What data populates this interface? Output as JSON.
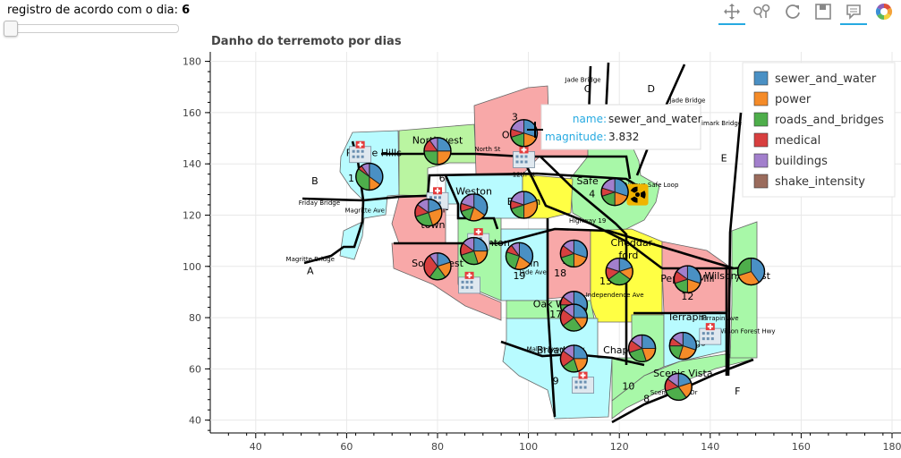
{
  "slider": {
    "label": "registro de acordo com o dia: ",
    "value": "6"
  },
  "toolbar": {
    "tools": [
      {
        "name": "pan-tool-icon",
        "active": true
      },
      {
        "name": "wheel-zoom-icon",
        "active": false
      },
      {
        "name": "reset-icon",
        "active": false
      },
      {
        "name": "save-icon",
        "active": false
      },
      {
        "name": "hover-tool-icon",
        "active": true
      },
      {
        "name": "bokeh-logo-icon",
        "active": false
      }
    ]
  },
  "chart_data": {
    "type": "pie",
    "title": "Danho do terremoto por dias",
    "xlim": [
      30,
      180
    ],
    "ylim": [
      35,
      183
    ],
    "x_ticks": [
      40,
      60,
      80,
      100,
      120,
      140,
      160,
      180
    ],
    "y_ticks": [
      40,
      60,
      80,
      100,
      120,
      140,
      160,
      180
    ],
    "grid": true,
    "legend_position": "top-right",
    "legend": [
      {
        "name": "sewer_and_water",
        "color": "#4a90c4"
      },
      {
        "name": "power",
        "color": "#f58b28"
      },
      {
        "name": "roads_and_bridges",
        "color": "#4eae4b"
      },
      {
        "name": "medical",
        "color": "#d83f3f"
      },
      {
        "name": "buildings",
        "color": "#a27fcc"
      },
      {
        "name": "shake_intensity",
        "color": "#9a6b5c"
      }
    ],
    "tooltip": {
      "name_label": "name:",
      "name_value": "sewer_and_water",
      "magnitude_label": "magnitude:",
      "magnitude_value": "3.832"
    },
    "region_labels": [
      {
        "text": "Palace Hills",
        "x": 66,
        "y": 143
      },
      {
        "text": "1",
        "x": 61,
        "y": 133
      },
      {
        "text": "Northwest",
        "x": 80,
        "y": 148
      },
      {
        "text": "2",
        "x": 79,
        "y": 142
      },
      {
        "text": "3",
        "x": 97,
        "y": 157
      },
      {
        "text": "Old",
        "x": 96,
        "y": 150
      },
      {
        "text": "Weston",
        "x": 88,
        "y": 128
      },
      {
        "text": "6",
        "x": 81,
        "y": 133
      },
      {
        "text": "Down-",
        "x": 79,
        "y": 121
      },
      {
        "text": "town",
        "x": 79,
        "y": 115
      },
      {
        "text": "Easton",
        "x": 99,
        "y": 124
      },
      {
        "text": "14",
        "x": 98,
        "y": 120
      },
      {
        "text": "Safe",
        "x": 113,
        "y": 132
      },
      {
        "text": "4",
        "x": 114,
        "y": 127
      },
      {
        "text": "Southwest",
        "x": 80,
        "y": 100
      },
      {
        "text": "Southton",
        "x": 91,
        "y": 108
      },
      {
        "text": "Parkin",
        "x": 99,
        "y": 100
      },
      {
        "text": "19",
        "x": 98,
        "y": 95
      },
      {
        "text": "Pallo",
        "x": 110,
        "y": 101
      },
      {
        "text": "18",
        "x": 107,
        "y": 96
      },
      {
        "text": "Cheddar-",
        "x": 123,
        "y": 108
      },
      {
        "text": "ford",
        "x": 122,
        "y": 103
      },
      {
        "text": "13",
        "x": 117,
        "y": 93
      },
      {
        "text": "Oak Willow",
        "x": 107,
        "y": 84
      },
      {
        "text": "17",
        "x": 106,
        "y": 80
      },
      {
        "text": "Terrapin",
        "x": 135,
        "y": 79
      },
      {
        "text": "Springs",
        "x": 135,
        "y": 69
      },
      {
        "text": "Broad",
        "x": 105,
        "y": 66
      },
      {
        "text": "9",
        "x": 106,
        "y": 54
      },
      {
        "text": "Chapparal",
        "x": 122,
        "y": 66
      },
      {
        "text": "10",
        "x": 122,
        "y": 52
      },
      {
        "text": "Scenic Vista",
        "x": 134,
        "y": 57
      },
      {
        "text": "8",
        "x": 126,
        "y": 47
      },
      {
        "text": "Pepper Mill",
        "x": 135,
        "y": 94
      },
      {
        "text": "12",
        "x": 135,
        "y": 87
      },
      {
        "text": "Wilson Forest",
        "x": 146,
        "y": 95
      },
      {
        "text": "7",
        "x": 146,
        "y": 94
      }
    ],
    "road_labels": [
      {
        "text": "Jade Bridge",
        "x": 112,
        "y": 172
      },
      {
        "text": "North St",
        "x": 91,
        "y": 145
      },
      {
        "text": "12th St",
        "x": 99,
        "y": 135
      },
      {
        "text": "Friday Bridge",
        "x": 54,
        "y": 124
      },
      {
        "text": "Magritte Ave",
        "x": 64,
        "y": 121
      },
      {
        "text": "Magritte Bridge",
        "x": 52,
        "y": 102
      },
      {
        "text": "Highway 19",
        "x": 113,
        "y": 117
      },
      {
        "text": "Always Safe Loop",
        "x": 127,
        "y": 131
      },
      {
        "text": "Jade Ave",
        "x": 101,
        "y": 97
      },
      {
        "text": "Independence Ave",
        "x": 119,
        "y": 88
      },
      {
        "text": "Mallet Expressway",
        "x": 106,
        "y": 67
      },
      {
        "text": "Terrapin Ave",
        "x": 142,
        "y": 79
      },
      {
        "text": "Wilson Forest Hwy",
        "x": 148,
        "y": 74
      },
      {
        "text": "Scenic Vista Dr",
        "x": 132,
        "y": 50
      },
      {
        "text": "Himark Bridge",
        "x": 142,
        "y": 155
      },
      {
        "text": "Jade Bridge",
        "x": 135,
        "y": 164
      }
    ],
    "bridge_letters": [
      {
        "text": "A",
        "x": 52,
        "y": 97
      },
      {
        "text": "B",
        "x": 53,
        "y": 132
      },
      {
        "text": "C",
        "x": 113,
        "y": 168
      },
      {
        "text": "D",
        "x": 127,
        "y": 168
      },
      {
        "text": "E",
        "x": 143,
        "y": 141
      },
      {
        "text": "F",
        "x": 146,
        "y": 50
      }
    ],
    "pies": [
      {
        "region": "1",
        "x": 65,
        "y": 135,
        "values": [
          0.35,
          0.15,
          0.35,
          0.05,
          0.1
        ]
      },
      {
        "region": "2",
        "x": 80,
        "y": 145,
        "values": [
          0.25,
          0.25,
          0.25,
          0.15,
          0.1
        ]
      },
      {
        "region": "3",
        "x": 99,
        "y": 152,
        "values": [
          0.3,
          0.2,
          0.2,
          0.1,
          0.2
        ]
      },
      {
        "region": "6",
        "x": 78,
        "y": 121,
        "values": [
          0.2,
          0.25,
          0.25,
          0.15,
          0.15
        ]
      },
      {
        "region": "Weston",
        "x": 88,
        "y": 123,
        "values": [
          0.35,
          0.2,
          0.15,
          0.1,
          0.2
        ]
      },
      {
        "region": "14",
        "x": 99,
        "y": 124,
        "values": [
          0.2,
          0.3,
          0.2,
          0.1,
          0.2
        ]
      },
      {
        "region": "4",
        "x": 119,
        "y": 129,
        "values": [
          0.3,
          0.2,
          0.2,
          0.1,
          0.2
        ]
      },
      {
        "region": "Southwest",
        "x": 80,
        "y": 100,
        "values": [
          0.2,
          0.2,
          0.2,
          0.3,
          0.1
        ]
      },
      {
        "region": "Southton",
        "x": 88,
        "y": 106,
        "values": [
          0.25,
          0.2,
          0.25,
          0.15,
          0.15
        ]
      },
      {
        "region": "19",
        "x": 98,
        "y": 104,
        "values": [
          0.35,
          0.2,
          0.25,
          0.1,
          0.1
        ]
      },
      {
        "region": "18",
        "x": 110,
        "y": 105,
        "values": [
          0.3,
          0.2,
          0.2,
          0.15,
          0.15
        ]
      },
      {
        "region": "13",
        "x": 120,
        "y": 98,
        "values": [
          0.2,
          0.15,
          0.3,
          0.15,
          0.2
        ]
      },
      {
        "region": "17",
        "x": 110,
        "y": 85,
        "values": [
          0.3,
          0.2,
          0.25,
          0.1,
          0.15
        ]
      },
      {
        "region": "9",
        "x": 110,
        "y": 80,
        "values": [
          0.25,
          0.15,
          0.25,
          0.2,
          0.15
        ]
      },
      {
        "region": "Broad",
        "x": 110,
        "y": 64,
        "values": [
          0.25,
          0.2,
          0.2,
          0.2,
          0.15
        ]
      },
      {
        "region": "Chapparal",
        "x": 125,
        "y": 68,
        "values": [
          0.25,
          0.2,
          0.25,
          0.15,
          0.15
        ]
      },
      {
        "region": "Springs",
        "x": 134,
        "y": 69,
        "values": [
          0.3,
          0.25,
          0.2,
          0.1,
          0.15
        ]
      },
      {
        "region": "8",
        "x": 133,
        "y": 53,
        "values": [
          0.2,
          0.2,
          0.3,
          0.15,
          0.15
        ]
      },
      {
        "region": "12",
        "x": 135,
        "y": 95,
        "values": [
          0.3,
          0.2,
          0.2,
          0.15,
          0.15
        ]
      },
      {
        "region": "7",
        "x": 149,
        "y": 98,
        "values": [
          0.4,
          0.3,
          0.3,
          0.0,
          0.0
        ]
      }
    ],
    "hospitals": [
      {
        "x": 63,
        "y": 144
      },
      {
        "x": 99,
        "y": 142
      },
      {
        "x": 80,
        "y": 126
      },
      {
        "x": 89,
        "y": 110
      },
      {
        "x": 87,
        "y": 93
      },
      {
        "x": 112,
        "y": 54
      },
      {
        "x": 140,
        "y": 73
      }
    ],
    "plant": {
      "x": 124,
      "y": 128
    }
  }
}
